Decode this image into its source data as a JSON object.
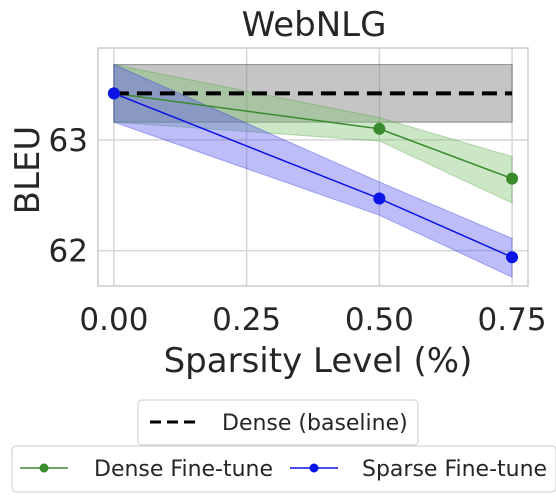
{
  "chart_data": {
    "type": "line",
    "title": "WebNLG",
    "xlabel": "Sparsity Level (%)",
    "ylabel": "BLEU",
    "xlim": [
      -0.03,
      0.78
    ],
    "ylim": [
      61.68,
      63.83
    ],
    "x_ticks": [
      "0.00",
      "0.25",
      "0.50",
      "0.75"
    ],
    "x_tick_values": [
      0.0,
      0.25,
      0.5,
      0.75
    ],
    "y_ticks": [
      "62",
      "63"
    ],
    "y_tick_values": [
      62,
      63
    ],
    "grid": true,
    "baseline": {
      "name": "Dense (baseline)",
      "value": 63.42,
      "band": [
        63.16,
        63.68
      ],
      "color": "#000000",
      "band_color": "#7f7f7f",
      "style": "dashed"
    },
    "series": [
      {
        "name": "Dense Fine-tune",
        "color": "#3a8a2e",
        "band_color": "#7cc46e",
        "x": [
          0.0,
          0.5,
          0.75
        ],
        "y": [
          63.42,
          63.1,
          62.65
        ],
        "lower": [
          63.16,
          62.99,
          62.43
        ],
        "upper": [
          63.68,
          63.2,
          62.85
        ]
      },
      {
        "name": "Sparse Fine-tune",
        "color": "#0a14e6",
        "band_color": "#5a5aef",
        "x": [
          0.0,
          0.5,
          0.75
        ],
        "y": [
          63.42,
          62.47,
          61.94
        ],
        "lower": [
          63.16,
          62.32,
          61.76
        ],
        "upper": [
          63.68,
          62.62,
          62.11
        ]
      }
    ],
    "legend": [
      {
        "location": "below-axes-upper",
        "entries": [
          "Dense (baseline)"
        ]
      },
      {
        "location": "below-axes-lower",
        "entries": [
          "Dense Fine-tune",
          "Sparse Fine-tune"
        ]
      }
    ]
  }
}
